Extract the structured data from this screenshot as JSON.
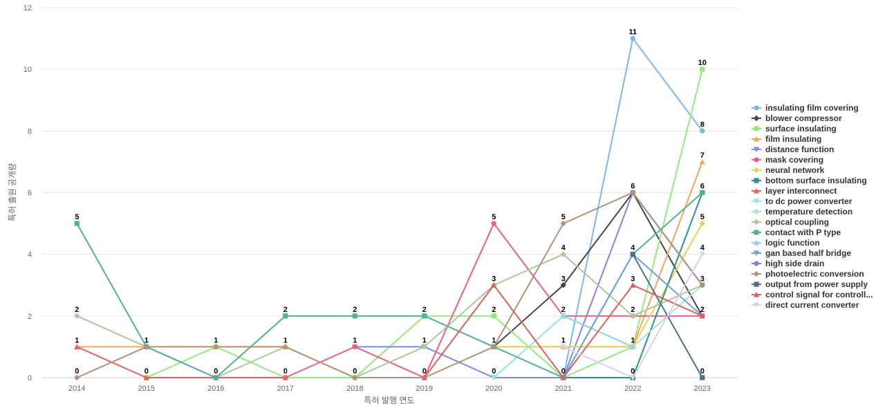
{
  "chart_data": {
    "type": "line",
    "xlabel": "특허 발행 연도",
    "ylabel": "특허 출원 공개량",
    "ylim": [
      0,
      12
    ],
    "yticks": [
      0,
      2,
      4,
      6,
      8,
      10,
      12
    ],
    "grid": true,
    "legend_position": "right",
    "categories": [
      "2014",
      "2015",
      "2016",
      "2017",
      "2018",
      "2019",
      "2020",
      "2021",
      "2022",
      "2023"
    ],
    "series": [
      {
        "name": "insulating film covering",
        "color": "#7cb5ec",
        "marker": "circle",
        "values": [
          null,
          null,
          null,
          null,
          null,
          null,
          null,
          0,
          11,
          8
        ]
      },
      {
        "name": "blower compressor",
        "color": "#434348",
        "marker": "diamond",
        "values": [
          null,
          null,
          null,
          null,
          null,
          null,
          1,
          3,
          6,
          2
        ]
      },
      {
        "name": "surface insulating",
        "color": "#90ed7d",
        "marker": "square",
        "values": [
          null,
          0,
          1,
          0,
          0,
          2,
          2,
          0,
          1,
          10
        ]
      },
      {
        "name": "film insulating",
        "color": "#f7a35c",
        "marker": "triangle",
        "values": [
          1,
          1,
          1,
          1,
          null,
          null,
          1,
          1,
          1,
          7
        ]
      },
      {
        "name": "distance function",
        "color": "#8085e9",
        "marker": "triangle-down",
        "values": [
          null,
          null,
          null,
          null,
          1,
          1,
          0,
          0,
          6,
          3
        ]
      },
      {
        "name": "mask covering",
        "color": "#f15c80",
        "marker": "circle",
        "values": [
          null,
          null,
          null,
          0,
          1,
          0,
          5,
          2,
          2,
          2
        ]
      },
      {
        "name": "neural network",
        "color": "#e4d354",
        "marker": "diamond",
        "values": [
          null,
          null,
          null,
          null,
          null,
          null,
          1,
          1,
          1,
          5
        ]
      },
      {
        "name": "bottom surface insulating",
        "color": "#2b908f",
        "marker": "square",
        "values": [
          null,
          null,
          null,
          null,
          null,
          null,
          null,
          0,
          0,
          6
        ]
      },
      {
        "name": "layer interconnect",
        "color": "#f45b5b",
        "marker": "triangle",
        "values": [
          1,
          0,
          0,
          0,
          null,
          null,
          null,
          null,
          null,
          null
        ]
      },
      {
        "name": "to dc power converter",
        "color": "#91e8e1",
        "marker": "triangle-down",
        "values": [
          null,
          null,
          null,
          null,
          null,
          null,
          0,
          2,
          1,
          null
        ]
      },
      {
        "name": "temperature detection",
        "color": "#b2dfcf",
        "marker": "circle",
        "values": [
          null,
          null,
          null,
          null,
          null,
          null,
          null,
          2,
          1,
          3
        ]
      },
      {
        "name": "optical coupling",
        "color": "#a9c99a",
        "marker": "diamond",
        "values": [
          2,
          1,
          0,
          1,
          0,
          1,
          3,
          4,
          2,
          3
        ]
      },
      {
        "name": "contact with P type",
        "color": "#4fb38f",
        "marker": "square",
        "values": [
          5,
          1,
          0,
          2,
          2,
          2,
          1,
          0,
          4,
          6
        ]
      },
      {
        "name": "logic function",
        "color": "#8fd3e6",
        "marker": "triangle",
        "values": [
          null,
          null,
          null,
          null,
          null,
          null,
          null,
          2,
          1,
          null
        ]
      },
      {
        "name": "gan based half bridge",
        "color": "#6f9fd8",
        "marker": "triangle-down",
        "values": [
          null,
          null,
          null,
          null,
          null,
          null,
          null,
          0,
          4,
          2
        ]
      },
      {
        "name": "high side drain",
        "color": "#7b7fd6",
        "marker": "circle",
        "values": [
          null,
          null,
          null,
          null,
          null,
          null,
          null,
          null,
          6,
          3
        ]
      },
      {
        "name": "photoelectric conversion",
        "color": "#b5917a",
        "marker": "diamond",
        "values": [
          0,
          1,
          1,
          1,
          0,
          0,
          1,
          5,
          6,
          3
        ]
      },
      {
        "name": "output from power supply",
        "color": "#4d6f8f",
        "marker": "square",
        "values": [
          null,
          null,
          null,
          null,
          null,
          null,
          null,
          null,
          4,
          0
        ]
      },
      {
        "name": "control signal for controll...",
        "color": "#e25d5d",
        "marker": "triangle",
        "values": [
          null,
          null,
          null,
          null,
          null,
          0,
          3,
          0,
          3,
          2
        ]
      },
      {
        "name": "direct current converter",
        "color": "#dcd0e8",
        "marker": "triangle-down",
        "values": [
          null,
          null,
          null,
          null,
          null,
          null,
          null,
          1,
          0,
          4
        ]
      }
    ],
    "data_labels": [
      {
        "x": "2014",
        "y": 5
      },
      {
        "x": "2014",
        "y": 2
      },
      {
        "x": "2014",
        "y": 1
      },
      {
        "x": "2014",
        "y": 0
      },
      {
        "x": "2015",
        "y": 1
      },
      {
        "x": "2015",
        "y": 0
      },
      {
        "x": "2016",
        "y": 1
      },
      {
        "x": "2016",
        "y": 0
      },
      {
        "x": "2017",
        "y": 2
      },
      {
        "x": "2017",
        "y": 1
      },
      {
        "x": "2017",
        "y": 0
      },
      {
        "x": "2018",
        "y": 2
      },
      {
        "x": "2018",
        "y": 1
      },
      {
        "x": "2018",
        "y": 0
      },
      {
        "x": "2019",
        "y": 2
      },
      {
        "x": "2019",
        "y": 1
      },
      {
        "x": "2019",
        "y": 0
      },
      {
        "x": "2020",
        "y": 5
      },
      {
        "x": "2020",
        "y": 3
      },
      {
        "x": "2020",
        "y": 2
      },
      {
        "x": "2020",
        "y": 1
      },
      {
        "x": "2020",
        "y": 0
      },
      {
        "x": "2021",
        "y": 5
      },
      {
        "x": "2021",
        "y": 4
      },
      {
        "x": "2021",
        "y": 3
      },
      {
        "x": "2021",
        "y": 2
      },
      {
        "x": "2021",
        "y": 1
      },
      {
        "x": "2021",
        "y": 0
      },
      {
        "x": "2022",
        "y": 11
      },
      {
        "x": "2022",
        "y": 6
      },
      {
        "x": "2022",
        "y": 4
      },
      {
        "x": "2022",
        "y": 3
      },
      {
        "x": "2022",
        "y": 2
      },
      {
        "x": "2022",
        "y": 1
      },
      {
        "x": "2022",
        "y": 0
      },
      {
        "x": "2023",
        "y": 10
      },
      {
        "x": "2023",
        "y": 8
      },
      {
        "x": "2023",
        "y": 7
      },
      {
        "x": "2023",
        "y": 6
      },
      {
        "x": "2023",
        "y": 5
      },
      {
        "x": "2023",
        "y": 4
      },
      {
        "x": "2023",
        "y": 3
      },
      {
        "x": "2023",
        "y": 2
      },
      {
        "x": "2023",
        "y": 0
      }
    ]
  }
}
